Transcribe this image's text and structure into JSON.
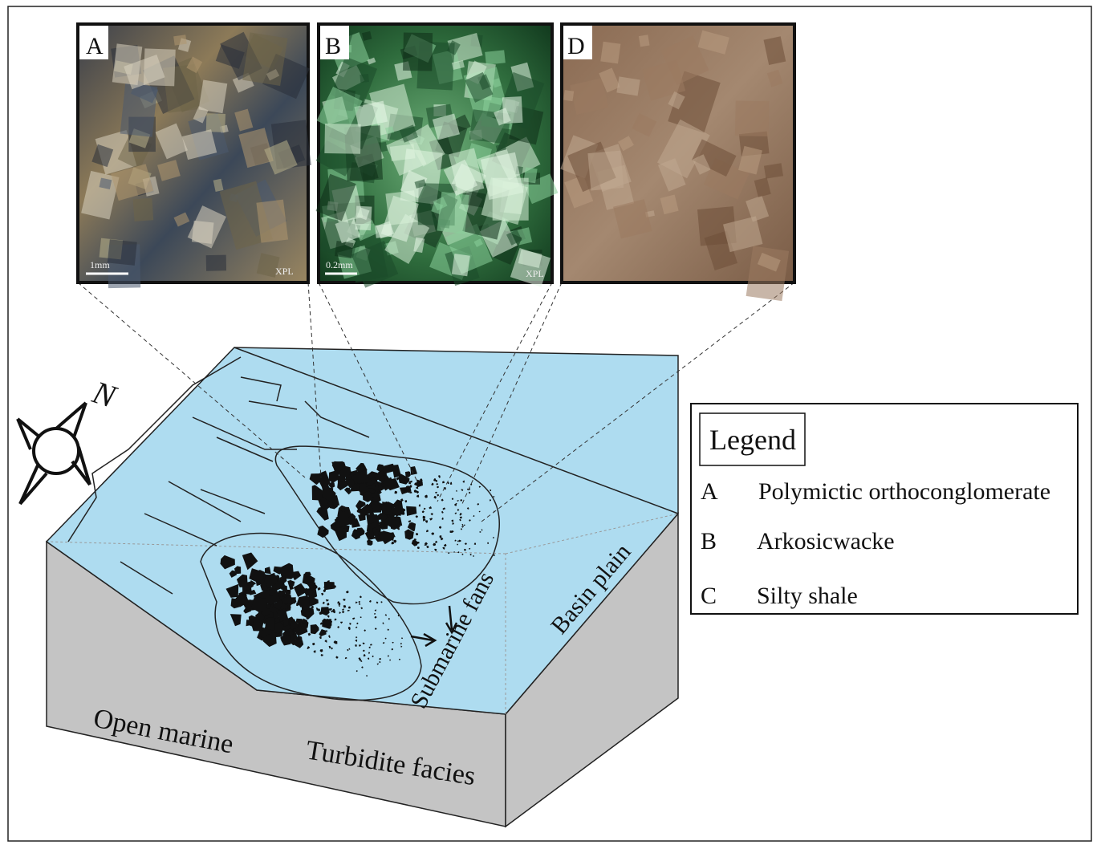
{
  "photos": [
    {
      "label": "A",
      "scale": "1mm",
      "mode": "XPL"
    },
    {
      "label": "B",
      "scale": "0.2mm",
      "mode": "XPL"
    },
    {
      "label": "D"
    }
  ],
  "compass": "N",
  "legend": {
    "title": "Legend",
    "items": [
      {
        "key": "A",
        "text": "Polymictic orthoconglomerate"
      },
      {
        "key": "B",
        "text": "Arkosicwacke"
      },
      {
        "key": "C",
        "text": "Silty shale"
      }
    ]
  },
  "block": {
    "submarine": "Submarine fans",
    "basin": "Basin plain",
    "open": "Open marine",
    "turbidite": "Turbidite facies"
  }
}
